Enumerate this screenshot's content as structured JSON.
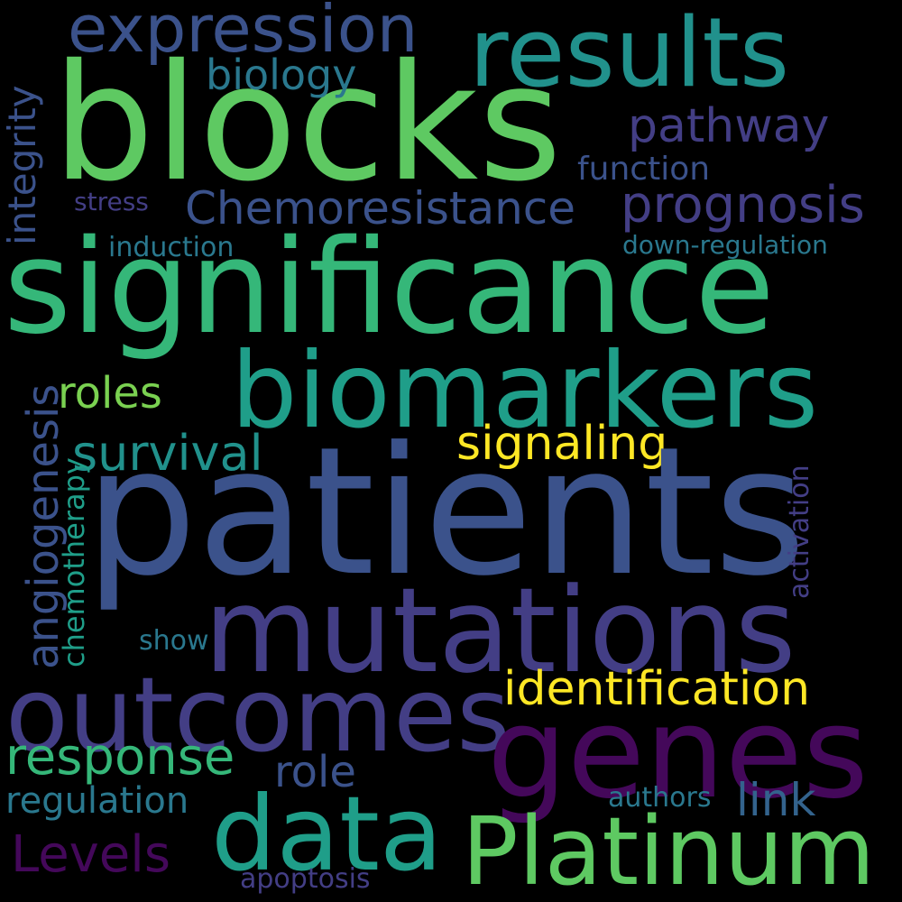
{
  "background": "#000000",
  "palette": {
    "purple": "#44085a",
    "indigo": "#433e85",
    "blue": "#3b528b",
    "steel": "#33638d",
    "teal": "#21918c",
    "sea": "#1f9e89",
    "green": "#35b779",
    "lime": "#5ec962",
    "light-green": "#7ad151",
    "yellow": "#fde725"
  },
  "words": {
    "patients": "patients",
    "significance": "significance",
    "blocks": "blocks",
    "mutations": "mutations",
    "biomarkers": "biomarkers",
    "results": "results",
    "genes": "genes",
    "outcomes": "outcomes",
    "data": "data",
    "platinum": "Platinum",
    "expression": "expression",
    "chemoresistance": "Chemoresistance",
    "identification": "identification",
    "prognosis": "prognosis",
    "pathway": "pathway",
    "response": "response",
    "survival": "survival",
    "signaling": "signaling",
    "angiogenesis": "angiogenesis",
    "integrity": "integrity",
    "levels": "Levels",
    "roles": "roles",
    "role": "role",
    "link": "link",
    "biology": "biology",
    "regulation": "regulation",
    "function": "function",
    "induction": "induction",
    "down_regulation": "down-regulation",
    "chemotherapy": "chemotherapy",
    "activation": "activation",
    "stress": "stress",
    "show": "show",
    "authors": "authors",
    "apoptosis": "apoptosis"
  }
}
